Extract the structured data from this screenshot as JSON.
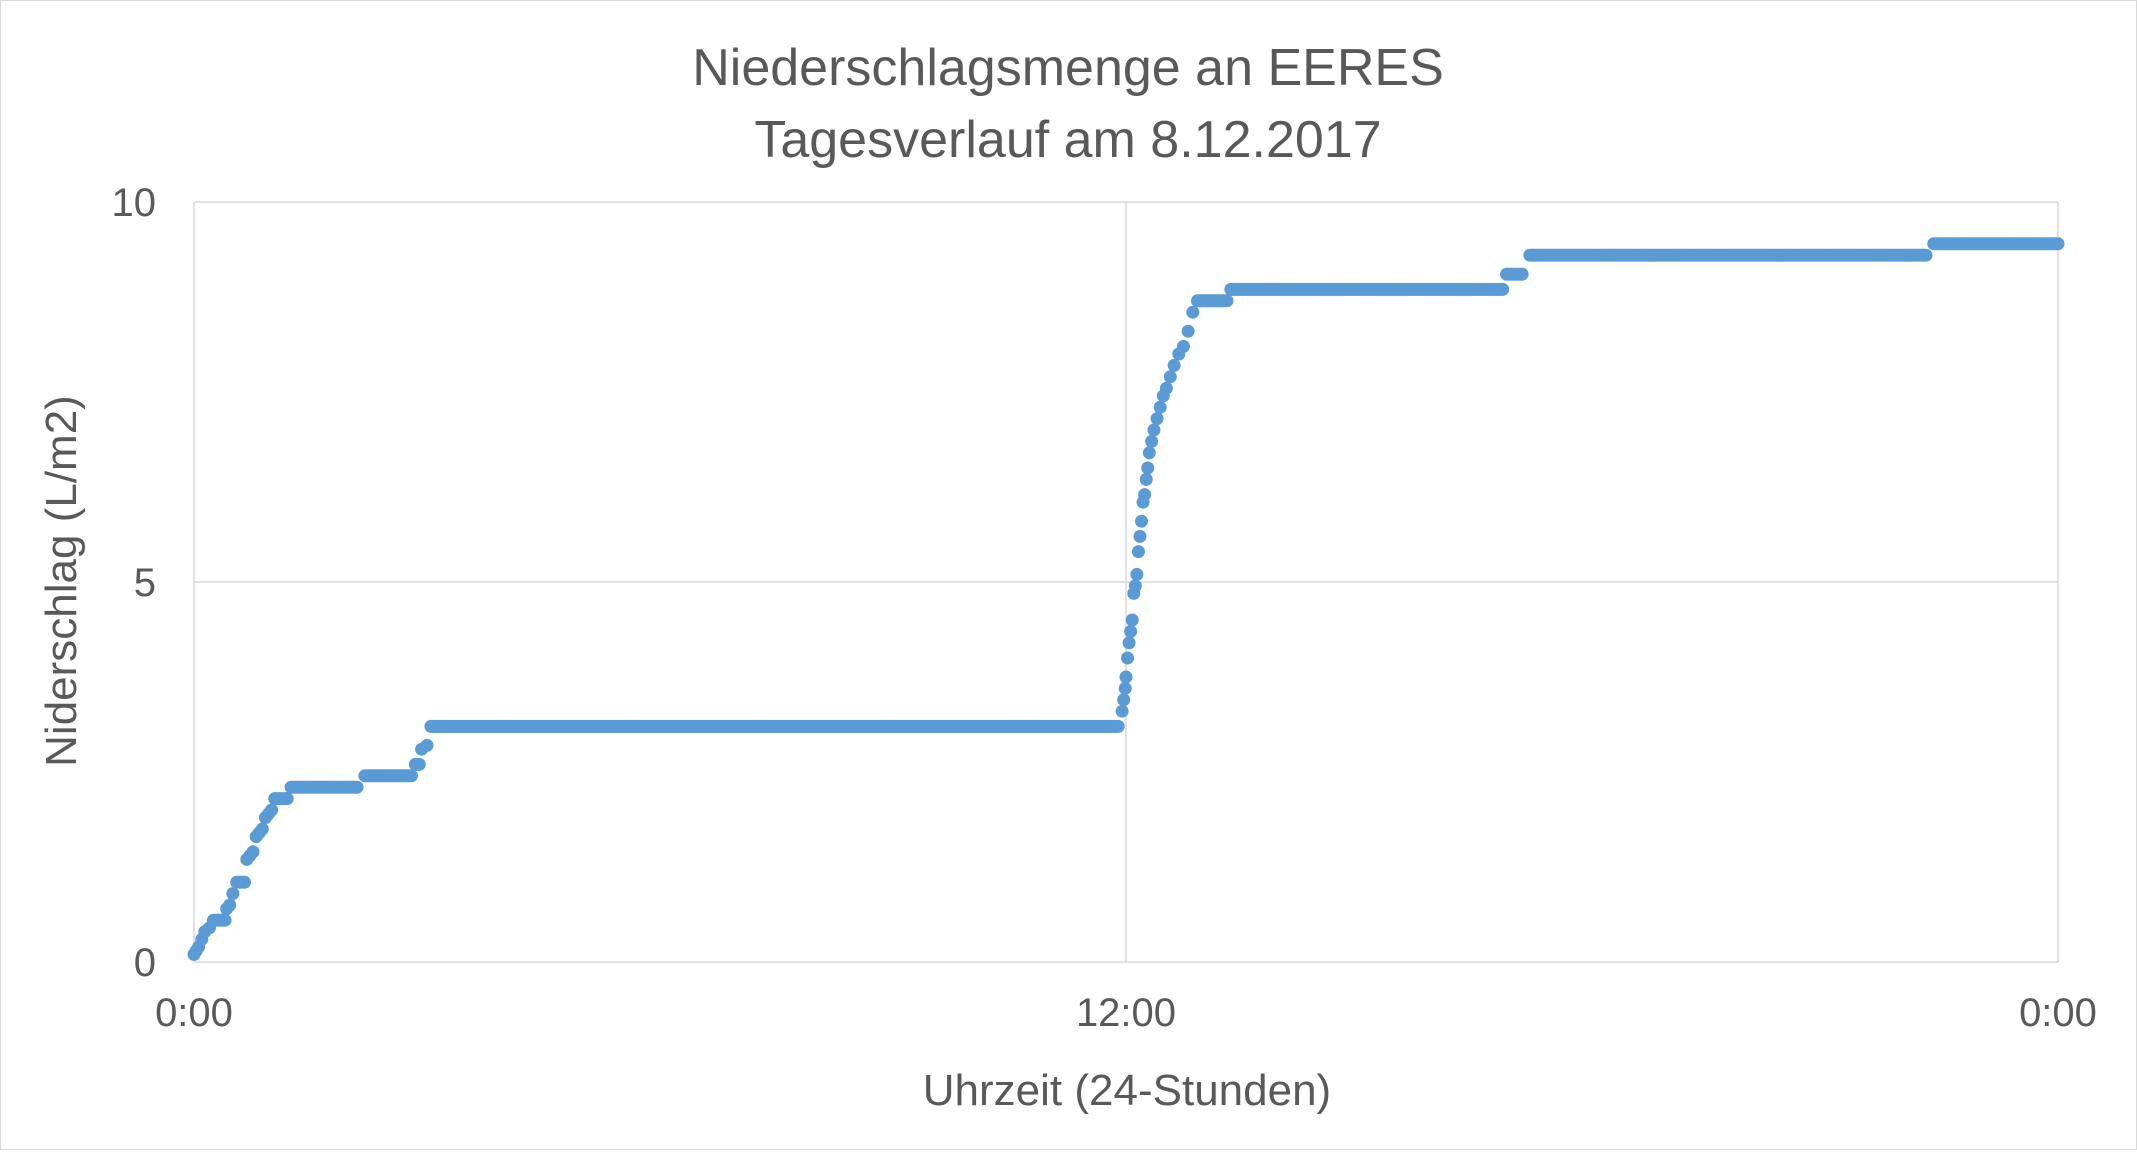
{
  "chart_data": {
    "type": "scatter",
    "title": "Niederschlagsmenge an EERES",
    "subtitle": "Tagesverlauf am 8.12.2017",
    "xlabel": "Uhrzeit (24-Stunden)",
    "ylabel": "Niderschlag (L/m2)",
    "x_unit": "hours",
    "xlim": [
      0,
      24
    ],
    "ylim": [
      0,
      10
    ],
    "x_ticks": [
      0,
      12,
      24
    ],
    "x_tick_labels": [
      "0:00",
      "12:00",
      "0:00"
    ],
    "y_ticks": [
      0,
      5,
      10
    ],
    "y_tick_labels": [
      "0",
      "5",
      "10"
    ],
    "grid": true,
    "legend": "none",
    "marker_color": "#5b9bd5",
    "grid_color": "#d9d9d9",
    "text_color": "#595959",
    "series": [
      {
        "points": [
          [
            0.0,
            0.1
          ],
          [
            0.03,
            0.15
          ],
          [
            0.06,
            0.2
          ],
          [
            0.1,
            0.3
          ],
          [
            0.14,
            0.4
          ],
          [
            0.2,
            0.45
          ],
          [
            0.25,
            0.55
          ],
          [
            0.3,
            0.55
          ],
          [
            0.35,
            0.55
          ],
          [
            0.4,
            0.55
          ],
          [
            0.42,
            0.7
          ],
          [
            0.46,
            0.75
          ],
          [
            0.5,
            0.9
          ],
          [
            0.55,
            1.05
          ],
          [
            0.6,
            1.05
          ],
          [
            0.65,
            1.05
          ],
          [
            0.68,
            1.35
          ],
          [
            0.72,
            1.4
          ],
          [
            0.76,
            1.45
          ],
          [
            0.8,
            1.65
          ],
          [
            0.84,
            1.7
          ],
          [
            0.88,
            1.75
          ],
          [
            0.92,
            1.9
          ],
          [
            0.96,
            1.95
          ],
          [
            1.0,
            2.0
          ],
          [
            1.04,
            2.15
          ],
          [
            1.1,
            2.15
          ],
          [
            1.16,
            2.15
          ],
          [
            1.2,
            2.15
          ],
          [
            1.25,
            2.3
          ],
          [
            1.5,
            2.3
          ],
          [
            1.8,
            2.3
          ],
          [
            2.1,
            2.3
          ],
          [
            2.2,
            2.45
          ],
          [
            2.5,
            2.45
          ],
          [
            2.8,
            2.45
          ],
          [
            2.85,
            2.6
          ],
          [
            2.9,
            2.6
          ],
          [
            2.93,
            2.8
          ],
          [
            3.0,
            2.85
          ],
          [
            3.05,
            3.1
          ],
          [
            4.0,
            3.1
          ],
          [
            5.0,
            3.1
          ],
          [
            6.0,
            3.1
          ],
          [
            7.0,
            3.1
          ],
          [
            8.0,
            3.1
          ],
          [
            9.0,
            3.1
          ],
          [
            10.0,
            3.1
          ],
          [
            11.0,
            3.1
          ],
          [
            11.5,
            3.1
          ],
          [
            11.9,
            3.1
          ],
          [
            11.95,
            3.3
          ],
          [
            11.97,
            3.45
          ],
          [
            11.99,
            3.6
          ],
          [
            12.0,
            3.75
          ],
          [
            12.02,
            4.0
          ],
          [
            12.04,
            4.2
          ],
          [
            12.06,
            4.35
          ],
          [
            12.08,
            4.5
          ],
          [
            12.1,
            4.85
          ],
          [
            12.12,
            4.95
          ],
          [
            12.14,
            5.1
          ],
          [
            12.16,
            5.4
          ],
          [
            12.18,
            5.6
          ],
          [
            12.2,
            5.8
          ],
          [
            12.22,
            6.05
          ],
          [
            12.24,
            6.15
          ],
          [
            12.26,
            6.35
          ],
          [
            12.28,
            6.5
          ],
          [
            12.3,
            6.7
          ],
          [
            12.33,
            6.85
          ],
          [
            12.36,
            7.0
          ],
          [
            12.4,
            7.15
          ],
          [
            12.44,
            7.3
          ],
          [
            12.48,
            7.45
          ],
          [
            12.52,
            7.55
          ],
          [
            12.57,
            7.7
          ],
          [
            12.62,
            7.85
          ],
          [
            12.68,
            8.0
          ],
          [
            12.74,
            8.1
          ],
          [
            12.8,
            8.3
          ],
          [
            12.86,
            8.55
          ],
          [
            12.92,
            8.7
          ],
          [
            13.1,
            8.7
          ],
          [
            13.3,
            8.7
          ],
          [
            13.35,
            8.85
          ],
          [
            14.0,
            8.85
          ],
          [
            15.0,
            8.85
          ],
          [
            16.0,
            8.85
          ],
          [
            16.85,
            8.85
          ],
          [
            16.9,
            9.05
          ],
          [
            17.1,
            9.05
          ],
          [
            17.2,
            9.3
          ],
          [
            18.0,
            9.3
          ],
          [
            19.0,
            9.3
          ],
          [
            20.0,
            9.3
          ],
          [
            21.0,
            9.3
          ],
          [
            22.3,
            9.3
          ],
          [
            22.4,
            9.45
          ],
          [
            23.0,
            9.45
          ],
          [
            23.5,
            9.45
          ],
          [
            24.0,
            9.45
          ]
        ]
      }
    ]
  }
}
